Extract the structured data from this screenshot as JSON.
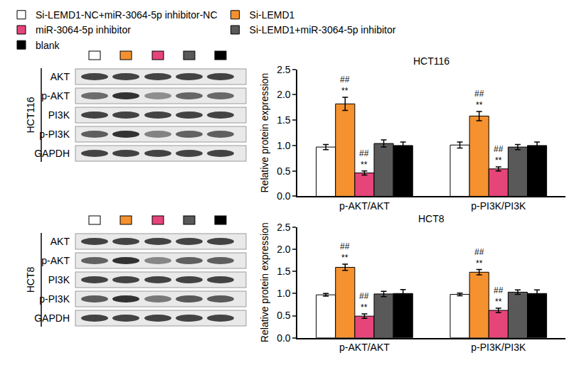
{
  "chart_data": [
    {
      "type": "bar",
      "title": "HCT116",
      "ylabel": "Relative protein expression",
      "categories": [
        "p-AKT/AKT",
        "p-PI3K/PI3K"
      ],
      "series": [
        {
          "name": "Si-LEMD1-NC+miR-3064-5p inhibitor-NC",
          "color": "#ffffff",
          "values": [
            0.97,
            1.01
          ],
          "errors": [
            0.05,
            0.06
          ]
        },
        {
          "name": "Si-LEMD1",
          "color": "#f5922f",
          "values": [
            1.82,
            1.58
          ],
          "errors": [
            0.13,
            0.09
          ]
        },
        {
          "name": "miR-3064-5p inhibitor",
          "color": "#e6457a",
          "values": [
            0.46,
            0.54
          ],
          "errors": [
            0.04,
            0.04
          ]
        },
        {
          "name": "Si-LEMD1+miR-3064-5p inhibitor",
          "color": "#595959",
          "values": [
            1.04,
            0.97
          ],
          "errors": [
            0.07,
            0.05
          ]
        },
        {
          "name": "blank",
          "color": "#000000",
          "values": [
            1.0,
            1.0
          ],
          "errors": [
            0.07,
            0.07
          ]
        }
      ],
      "ylim": [
        0,
        2.5
      ],
      "yticks": [
        {
          "value": 0,
          "label": "0.0"
        },
        {
          "value": 0.5,
          "label": "0.5"
        },
        {
          "value": 1,
          "label": "1.0"
        },
        {
          "value": 1.5,
          "label": "1.5"
        },
        {
          "value": 2,
          "label": "2.0"
        },
        {
          "value": 2.5,
          "label": "2.5"
        }
      ],
      "grid": false,
      "legend": "top",
      "annotations": [
        {
          "category": "p-AKT/AKT",
          "series": "Si-LEMD1",
          "text": [
            "##",
            "**"
          ]
        },
        {
          "category": "p-AKT/AKT",
          "series": "miR-3064-5p inhibitor",
          "text": [
            "##",
            "**"
          ]
        },
        {
          "category": "p-PI3K/PI3K",
          "series": "Si-LEMD1",
          "text": [
            "##",
            "**"
          ]
        },
        {
          "category": "p-PI3K/PI3K",
          "series": "miR-3064-5p inhibitor",
          "text": [
            "##",
            "**"
          ]
        }
      ]
    },
    {
      "type": "bar",
      "title": "HCT8",
      "ylabel": "Relative protein expression",
      "categories": [
        "p-AKT/AKT",
        "p-PI3K/PI3K"
      ],
      "series": [
        {
          "name": "Si-LEMD1-NC+miR-3064-5p inhibitor-NC",
          "color": "#ffffff",
          "values": [
            0.97,
            0.98
          ],
          "errors": [
            0.03,
            0.03
          ]
        },
        {
          "name": "Si-LEMD1",
          "color": "#f5922f",
          "values": [
            1.59,
            1.48
          ],
          "errors": [
            0.07,
            0.06
          ]
        },
        {
          "name": "miR-3064-5p inhibitor",
          "color": "#e6457a",
          "values": [
            0.49,
            0.62
          ],
          "errors": [
            0.05,
            0.05
          ]
        },
        {
          "name": "Si-LEMD1+miR-3064-5p inhibitor",
          "color": "#595959",
          "values": [
            0.99,
            1.03
          ],
          "errors": [
            0.06,
            0.05
          ]
        },
        {
          "name": "blank",
          "color": "#000000",
          "values": [
            1.0,
            1.0
          ],
          "errors": [
            0.09,
            0.08
          ]
        }
      ],
      "ylim": [
        0,
        2.5
      ],
      "yticks": [
        {
          "value": 0,
          "label": "0.0"
        },
        {
          "value": 0.5,
          "label": "0.5"
        },
        {
          "value": 1,
          "label": "1.0"
        },
        {
          "value": 1.5,
          "label": "1.5"
        },
        {
          "value": 2,
          "label": "2.0"
        },
        {
          "value": 2.5,
          "label": "2.5"
        }
      ],
      "grid": false,
      "annotations": [
        {
          "category": "p-AKT/AKT",
          "series": "Si-LEMD1",
          "text": [
            "##",
            "**"
          ]
        },
        {
          "category": "p-AKT/AKT",
          "series": "miR-3064-5p inhibitor",
          "text": [
            "##",
            "**"
          ]
        },
        {
          "category": "p-PI3K/PI3K",
          "series": "Si-LEMD1",
          "text": [
            "##",
            "**"
          ]
        },
        {
          "category": "p-PI3K/PI3K",
          "series": "miR-3064-5p inhibitor",
          "text": [
            "##",
            "**"
          ]
        }
      ]
    }
  ],
  "blots": [
    {
      "cell_line": "HCT116",
      "rows": [
        "AKT",
        "p-AKT",
        "PI3K",
        "p-PI3K",
        "GAPDH"
      ]
    },
    {
      "cell_line": "HCT8",
      "rows": [
        "AKT",
        "p-AKT",
        "PI3K",
        "p-PI3K",
        "GAPDH"
      ]
    }
  ]
}
